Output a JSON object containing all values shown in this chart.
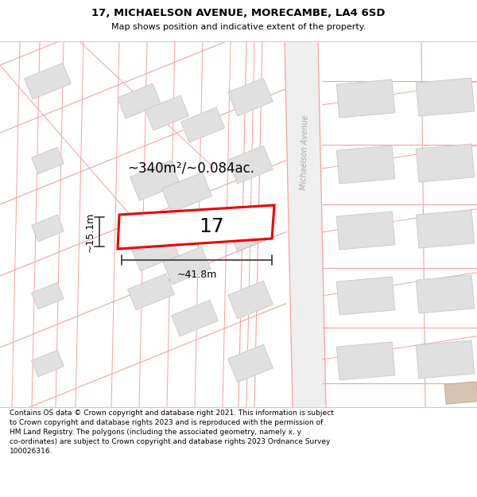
{
  "title_line1": "17, MICHAELSON AVENUE, MORECAMBE, LA4 6SD",
  "title_line2": "Map shows position and indicative extent of the property.",
  "footer_text": "Contains OS data © Crown copyright and database right 2021. This information is subject to Crown copyright and database rights 2023 and is reproduced with the permission of HM Land Registry. The polygons (including the associated geometry, namely x, y co-ordinates) are subject to Crown copyright and database rights 2023 Ordnance Survey 100026316.",
  "area_text": "~340m²/~0.084ac.",
  "width_text": "~41.8m",
  "height_text": "~15.1m",
  "number_text": "17",
  "bg_color": "#ffffff",
  "map_bg": "#ffffff",
  "road_line_color": "#f5a0a0",
  "road_fill_color": "#f0f0f0",
  "building_fill": "#e0e0e0",
  "building_edge": "#cccccc",
  "plot_fill": "#ffffff",
  "plot_edge_color": "#ee0000",
  "plot_edge_width": 2.0,
  "street_name": "Michaelson Avenue",
  "dim_color": "#444444",
  "text_color": "#000000"
}
